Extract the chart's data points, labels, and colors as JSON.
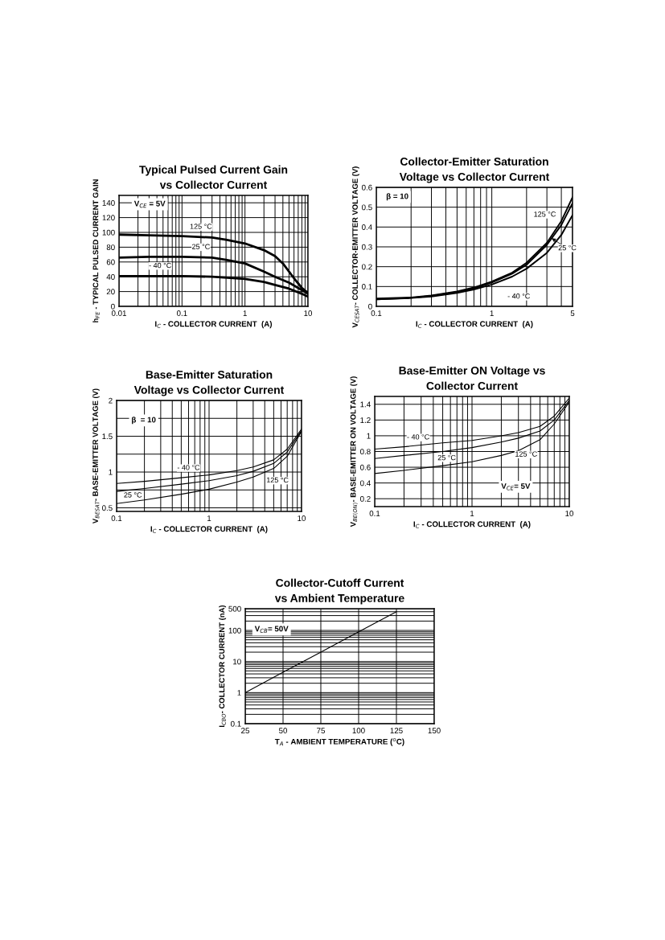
{
  "chart_data": [
    {
      "type": "line",
      "title": "Typical Pulsed Current Gain\nvs Collector Current",
      "xlabel": "I$_{C}$ - COLLECTOR CURRENT  (A)",
      "ylabel": "h$_{FE}$ - TYPICAL PULSED CURRENT GAIN",
      "log": "x",
      "xlim": [
        0.01,
        10
      ],
      "xticks": [
        0.01,
        0.1,
        1,
        10
      ],
      "ylim": [
        0,
        150
      ],
      "yticks": [
        0,
        20,
        40,
        60,
        80,
        100,
        120,
        140
      ],
      "grid": true,
      "annotations": [
        "V$_{CE}$ = 5V"
      ],
      "series": [
        {
          "name": "125 °C",
          "color": "#000000",
          "x": [
            0.01,
            0.03,
            0.1,
            0.3,
            0.5,
            1,
            2,
            3,
            4,
            6,
            8,
            10
          ],
          "values": [
            97,
            96,
            95,
            93,
            90,
            85,
            76,
            68,
            58,
            38,
            25,
            18
          ]
        },
        {
          "name": "25 °C",
          "color": "#000000",
          "x": [
            0.01,
            0.03,
            0.1,
            0.3,
            0.5,
            1,
            2,
            3,
            5,
            8,
            10
          ],
          "values": [
            66,
            67,
            67,
            66,
            63,
            58,
            47,
            40,
            32,
            22,
            17
          ]
        },
        {
          "name": "- 40 °C",
          "color": "#000000",
          "x": [
            0.01,
            0.1,
            0.3,
            1,
            2,
            3,
            5,
            8,
            10
          ],
          "values": [
            41,
            41,
            40,
            37,
            33,
            29,
            24,
            17,
            13
          ]
        }
      ]
    },
    {
      "type": "line",
      "title": "Collector-Emitter Saturation\nVoltage vs Collector Current",
      "xlabel": "I$_{C}$ - COLLECTOR CURRENT  (A)",
      "ylabel": "V$_{CESAT}$- COLLECTOR-EMITTER VOLTAGE (V)",
      "log": "x",
      "xlim": [
        0.1,
        5
      ],
      "xticks": [
        0.1,
        1,
        5
      ],
      "ylim": [
        0,
        0.6
      ],
      "yticks": [
        0,
        0.1,
        0.2,
        0.3,
        0.4,
        0.5,
        0.6
      ],
      "grid": true,
      "annotations": [
        "β = 10"
      ],
      "series": [
        {
          "name": "125 °C",
          "color": "#000000",
          "x": [
            0.1,
            0.2,
            0.3,
            0.5,
            0.7,
            1,
            1.5,
            2,
            3,
            4,
            5
          ],
          "values": [
            0.04,
            0.045,
            0.055,
            0.075,
            0.095,
            0.125,
            0.17,
            0.22,
            0.32,
            0.43,
            0.55
          ]
        },
        {
          "name": "25 °C",
          "color": "#000000",
          "x": [
            0.1,
            0.2,
            0.3,
            0.5,
            0.7,
            1,
            1.5,
            2,
            3,
            4,
            5
          ],
          "values": [
            0.035,
            0.043,
            0.053,
            0.072,
            0.09,
            0.12,
            0.165,
            0.21,
            0.31,
            0.41,
            0.52
          ]
        },
        {
          "name": "- 40 °C",
          "color": "#000000",
          "x": [
            0.1,
            0.2,
            0.3,
            0.5,
            0.7,
            1,
            1.5,
            2,
            3,
            4,
            5
          ],
          "values": [
            0.035,
            0.042,
            0.05,
            0.068,
            0.085,
            0.11,
            0.15,
            0.19,
            0.27,
            0.36,
            0.46
          ]
        }
      ]
    },
    {
      "type": "line",
      "title": "Base-Emitter Saturation\nVoltage vs Collector Current",
      "xlabel": "I$_{C}$ - COLLECTOR CURRENT  (A)",
      "ylabel": "V$_{BESAT}$- BASE-EMITTER VOLTAGE (V)",
      "log": "x",
      "xlim": [
        0.1,
        10
      ],
      "xticks": [
        0.1,
        1,
        10
      ],
      "ylim": [
        0.45,
        2
      ],
      "yticks": [
        0.5,
        {
          "value": 0.75,
          "label": null
        },
        1,
        {
          "value": 1.25,
          "label": null
        },
        1.5,
        {
          "value": 1.75,
          "label": null
        },
        2
      ],
      "grid": true,
      "annotations": [
        "β  = 10"
      ],
      "series": [
        {
          "name": "- 40 °C",
          "color": "#000000",
          "x": [
            0.1,
            0.2,
            0.5,
            1,
            2,
            3,
            5,
            7,
            10
          ],
          "values": [
            0.84,
            0.87,
            0.92,
            0.96,
            1.02,
            1.07,
            1.17,
            1.32,
            1.6
          ]
        },
        {
          "name": "25 °C",
          "color": "#000000",
          "x": [
            0.1,
            0.2,
            0.5,
            1,
            2,
            3,
            5,
            7,
            10
          ],
          "values": [
            0.73,
            0.77,
            0.83,
            0.88,
            0.95,
            1.01,
            1.12,
            1.28,
            1.58
          ]
        },
        {
          "name": "125 °C",
          "color": "#000000",
          "x": [
            0.1,
            0.2,
            0.5,
            1,
            2,
            3,
            5,
            7,
            10
          ],
          "values": [
            0.56,
            0.61,
            0.69,
            0.76,
            0.86,
            0.93,
            1.05,
            1.22,
            1.57
          ]
        }
      ]
    },
    {
      "type": "line",
      "title": "Base-Emitter ON Voltage vs\nCollector Current",
      "xlabel": "I$_{C}$ - COLLECTOR CURRENT  (A)",
      "ylabel": "V$_{BE(ON)}$- BASE-EMITTER ON VOLTAGE (V)",
      "log": "x",
      "xlim": [
        0.1,
        10
      ],
      "xticks": [
        0.1,
        1,
        10
      ],
      "ylim": [
        0.1,
        1.5
      ],
      "yticks": [
        0.2,
        0.4,
        0.6,
        0.8,
        1,
        1.2,
        1.4
      ],
      "grid": true,
      "annotations": [
        "V$_{CE}$= 5V"
      ],
      "series": [
        {
          "name": "- 40 °C",
          "color": "#000000",
          "x": [
            0.1,
            0.2,
            0.5,
            1,
            2,
            3,
            5,
            7,
            10
          ],
          "values": [
            0.83,
            0.86,
            0.91,
            0.94,
            1.0,
            1.04,
            1.12,
            1.25,
            1.48
          ]
        },
        {
          "name": "25 °C",
          "color": "#000000",
          "x": [
            0.1,
            0.2,
            0.5,
            1,
            2,
            3,
            5,
            7,
            10
          ],
          "values": [
            0.71,
            0.75,
            0.8,
            0.85,
            0.92,
            0.97,
            1.06,
            1.2,
            1.45
          ]
        },
        {
          "name": "125 °C",
          "color": "#000000",
          "x": [
            0.1,
            0.2,
            0.5,
            1,
            2,
            3,
            5,
            7,
            10
          ],
          "values": [
            0.52,
            0.56,
            0.62,
            0.67,
            0.75,
            0.81,
            0.95,
            1.15,
            1.43
          ]
        }
      ]
    },
    {
      "type": "line",
      "title": "Collector-Cutoff Current\nvs Ambient Temperature",
      "xlabel": "T$_{A}$ - AMBIENT TEMPERATURE ($^{o}$C)",
      "ylabel": "I$_{CBO}$- COLLECTOR CURRENT (nA)",
      "log": "y",
      "xlim": [
        25,
        150
      ],
      "xticks": [
        25,
        50,
        75,
        100,
        125,
        150
      ],
      "ylim": [
        0.1,
        500
      ],
      "yticks": [
        0.1,
        1,
        10,
        100,
        500
      ],
      "grid": true,
      "annotations": [
        "V$_{CB}$= 50V"
      ],
      "series": [
        {
          "color": "#000000",
          "x": [
            25,
            50,
            75,
            100,
            125
          ],
          "values": [
            1,
            4.5,
            20,
            90,
            400
          ]
        }
      ]
    }
  ]
}
